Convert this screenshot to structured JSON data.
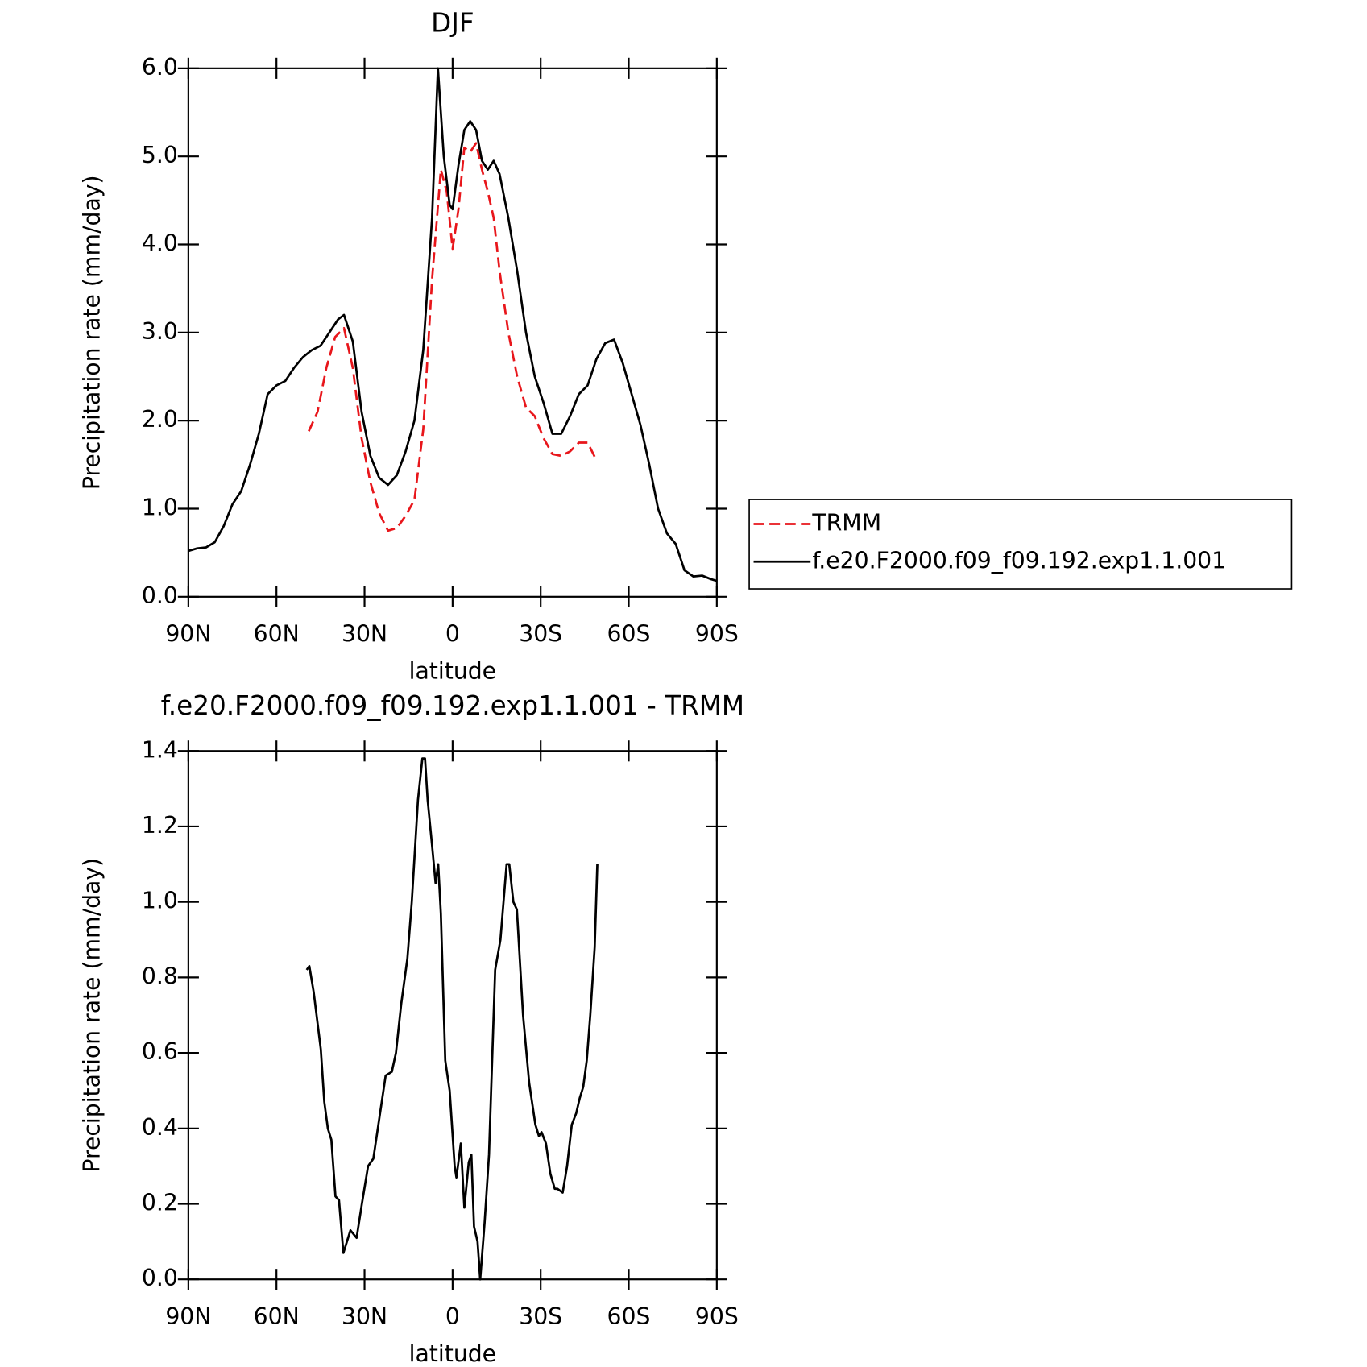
{
  "chart_data": [
    {
      "type": "line",
      "title": "DJF",
      "x_label": "latitude",
      "y_label": "Precipitation rate (mm/day)",
      "xlim": [
        90,
        -90
      ],
      "xticks": [
        {
          "value": 90,
          "label": "90N"
        },
        {
          "value": 60,
          "label": "60N"
        },
        {
          "value": 30,
          "label": "30N"
        },
        0,
        {
          "value": -30,
          "label": "30S"
        },
        {
          "value": -60,
          "label": "60S"
        },
        {
          "value": -90,
          "label": "90S"
        }
      ],
      "ylim": [
        0,
        6
      ],
      "yticks": [
        {
          "value": 0,
          "label": "0.0"
        },
        {
          "value": 1,
          "label": "1.0"
        },
        {
          "value": 2,
          "label": "2.0"
        },
        {
          "value": 3,
          "label": "3.0"
        },
        {
          "value": 4,
          "label": "4.0"
        },
        {
          "value": 5,
          "label": "5.0"
        },
        {
          "value": 6,
          "label": "6.0"
        }
      ],
      "legend": "right",
      "series": [
        {
          "name": "TRMM",
          "color": "#e8161b",
          "dashed": true,
          "x": [
            49,
            46,
            43,
            40,
            37,
            34,
            31,
            28,
            25,
            22,
            19,
            16,
            13,
            10,
            7,
            4,
            2,
            0,
            -2,
            -4,
            -6,
            -8,
            -10,
            -12,
            -14,
            -16,
            -19,
            -22,
            -25,
            -28,
            -31,
            -34,
            -37,
            -40,
            -43,
            -46,
            -49
          ],
          "values": [
            1.88,
            2.1,
            2.6,
            2.95,
            3.05,
            2.6,
            1.8,
            1.3,
            0.95,
            0.75,
            0.78,
            0.92,
            1.1,
            1.9,
            3.6,
            4.85,
            4.6,
            3.95,
            4.4,
            5.1,
            5.05,
            5.15,
            4.85,
            4.6,
            4.3,
            3.7,
            3.0,
            2.5,
            2.15,
            2.05,
            1.8,
            1.62,
            1.6,
            1.65,
            1.75,
            1.75,
            1.55
          ]
        },
        {
          "name": "f.e20.F2000.f09_f09.192.exp1.1.001",
          "color": "#000000",
          "dashed": false,
          "x": [
            90,
            87,
            84,
            81,
            78,
            75,
            72,
            69,
            66,
            63,
            60,
            57,
            54,
            51,
            48,
            45,
            42,
            39,
            37,
            34,
            31,
            28,
            25,
            22,
            19,
            16,
            13,
            10,
            7,
            5,
            3,
            1,
            0,
            -2,
            -4,
            -6,
            -8,
            -10,
            -12,
            -14,
            -16,
            -19,
            -22,
            -25,
            -28,
            -31,
            -34,
            -37,
            -40,
            -43,
            -46,
            -49,
            -52,
            -55,
            -58,
            -61,
            -64,
            -67,
            -70,
            -73,
            -76,
            -79,
            -82,
            -85,
            -88,
            -90
          ],
          "values": [
            0.52,
            0.55,
            0.56,
            0.62,
            0.8,
            1.05,
            1.2,
            1.5,
            1.85,
            2.3,
            2.4,
            2.45,
            2.6,
            2.72,
            2.8,
            2.85,
            3.0,
            3.15,
            3.2,
            2.9,
            2.1,
            1.6,
            1.35,
            1.27,
            1.38,
            1.65,
            2.0,
            2.8,
            4.3,
            6.0,
            5.0,
            4.45,
            4.4,
            4.9,
            5.3,
            5.4,
            5.3,
            4.95,
            4.85,
            4.95,
            4.8,
            4.3,
            3.7,
            3.0,
            2.5,
            2.2,
            1.85,
            1.85,
            2.05,
            2.3,
            2.4,
            2.7,
            2.88,
            2.92,
            2.65,
            2.3,
            1.95,
            1.5,
            1.0,
            0.72,
            0.6,
            0.3,
            0.23,
            0.24,
            0.2,
            0.18
          ]
        }
      ]
    },
    {
      "type": "line",
      "title": "f.e20.F2000.f09_f09.192.exp1.1.001 - TRMM",
      "x_label": "latitude",
      "y_label": "Precipitation rate (mm/day)",
      "xlim": [
        90,
        -90
      ],
      "xticks": [
        {
          "value": 90,
          "label": "90N"
        },
        {
          "value": 60,
          "label": "60N"
        },
        {
          "value": 30,
          "label": "30N"
        },
        0,
        {
          "value": -30,
          "label": "30S"
        },
        {
          "value": -60,
          "label": "60S"
        },
        {
          "value": -90,
          "label": "90S"
        }
      ],
      "ylim": [
        0,
        1.4
      ],
      "yticks": [
        {
          "value": 0,
          "label": "0.0"
        },
        0.2,
        0.4,
        0.6,
        0.8,
        {
          "value": 1,
          "label": "1.0"
        },
        1.2,
        1.4
      ],
      "series": [
        {
          "color": "#000000",
          "dashed": false,
          "x": [
            49.7,
            48.8,
            47.3,
            44.9,
            43.7,
            42.5,
            41.3,
            39.9,
            38.7,
            37.2,
            34.8,
            32.7,
            30.9,
            28.8,
            27.0,
            24.9,
            22.8,
            20.7,
            19.3,
            17.5,
            15.4,
            13.9,
            11.8,
            10.3,
            9.4,
            8.5,
            7.0,
            5.8,
            4.9,
            4.0,
            2.5,
            1.0,
            -0.7,
            -1.3,
            -2.8,
            -4.0,
            -5.5,
            -6.4,
            -7.3,
            -8.5,
            -9.4,
            -10.9,
            -12.4,
            -14.5,
            -16.3,
            -18.4,
            -19.3,
            -20.7,
            -21.9,
            -24.0,
            -26.1,
            -28.2,
            -29.4,
            -30.3,
            -31.8,
            -33.3,
            -34.8,
            -35.7,
            -37.5,
            -39.0,
            -40.6,
            -42.1,
            -43.3,
            -44.5,
            -45.7,
            -46.9,
            -48.4,
            -49.3
          ],
          "values": [
            0.82,
            0.83,
            0.76,
            0.61,
            0.47,
            0.4,
            0.37,
            0.22,
            0.21,
            0.07,
            0.13,
            0.11,
            0.2,
            0.3,
            0.32,
            0.43,
            0.54,
            0.55,
            0.6,
            0.73,
            0.85,
            1.0,
            1.27,
            1.38,
            1.38,
            1.27,
            1.15,
            1.05,
            1.1,
            0.97,
            0.58,
            0.5,
            0.3,
            0.27,
            0.36,
            0.19,
            0.31,
            0.33,
            0.14,
            0.1,
            0.0,
            0.15,
            0.33,
            0.82,
            0.9,
            1.1,
            1.1,
            1.0,
            0.98,
            0.7,
            0.52,
            0.41,
            0.38,
            0.39,
            0.36,
            0.28,
            0.24,
            0.24,
            0.23,
            0.3,
            0.41,
            0.44,
            0.48,
            0.51,
            0.58,
            0.7,
            0.88,
            1.1
          ]
        }
      ]
    }
  ]
}
